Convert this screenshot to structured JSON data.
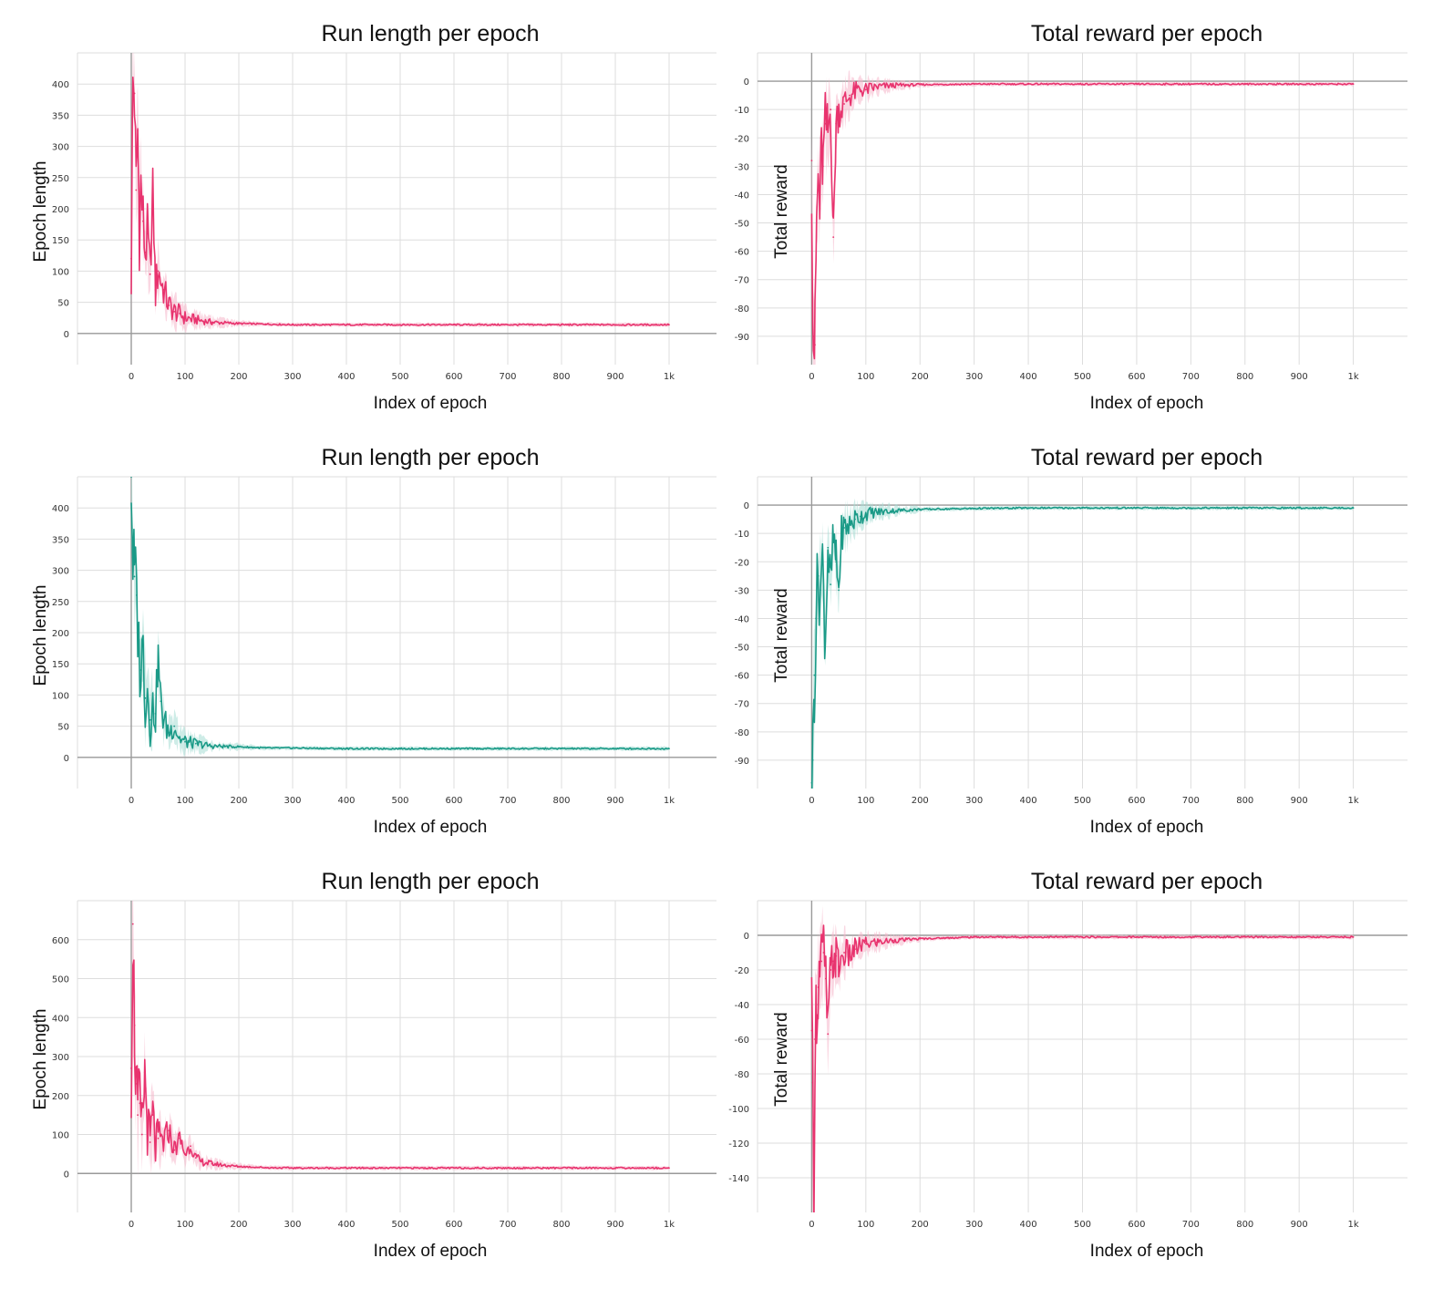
{
  "colors": {
    "pink": "#e8336e",
    "pink_band": "#f6b6cb",
    "teal": "#1a9a87",
    "teal_band": "#a6dcd3",
    "grid": "#dddddd",
    "axis": "#9a9a9a"
  },
  "chart_data": [
    {
      "id": "r1-length",
      "type": "line",
      "color": "pink",
      "title": "Run length per epoch",
      "xlabel": "Index of epoch",
      "ylabel": "Epoch length",
      "xlim": [
        -100,
        1100
      ],
      "ylim": [
        -50,
        450
      ],
      "x_ticks": [
        0,
        100,
        200,
        300,
        400,
        500,
        600,
        700,
        800,
        900,
        1000
      ],
      "x_tick_labels": [
        "0",
        "100",
        "200",
        "300",
        "400",
        "500",
        "600",
        "700",
        "800",
        "900",
        "1k"
      ],
      "y_ticks": [
        0,
        50,
        100,
        150,
        200,
        250,
        300,
        350,
        400
      ],
      "y_tick_labels": [
        "0",
        "50",
        "100",
        "150",
        "200",
        "250",
        "300",
        "350",
        "400"
      ],
      "grid": true,
      "series": [
        {
          "x": [
            0,
            3,
            6,
            9,
            12,
            15,
            18,
            22,
            26,
            30,
            35,
            40,
            45,
            50,
            60,
            70,
            80,
            90,
            100,
            120,
            150,
            200,
            250,
            300,
            400,
            500,
            600,
            700,
            800,
            900,
            1000
          ],
          "values": [
            120,
            400,
            385,
            230,
            325,
            165,
            240,
            180,
            130,
            160,
            95,
            230,
            70,
            100,
            70,
            45,
            35,
            32,
            25,
            22,
            18,
            16,
            15,
            14,
            14,
            14,
            14,
            14,
            14,
            14,
            14
          ]
        }
      ]
    },
    {
      "id": "r1-reward",
      "type": "line",
      "color": "pink",
      "title": "Total reward per epoch",
      "xlabel": "Index of epoch",
      "ylabel": "Total reward",
      "xlim": [
        -100,
        1100
      ],
      "ylim": [
        -100,
        10
      ],
      "x_ticks": [
        0,
        100,
        200,
        300,
        400,
        500,
        600,
        700,
        800,
        900,
        1000
      ],
      "x_tick_labels": [
        "0",
        "100",
        "200",
        "300",
        "400",
        "500",
        "600",
        "700",
        "800",
        "900",
        "1k"
      ],
      "y_ticks": [
        0,
        -10,
        -20,
        -30,
        -40,
        -50,
        -60,
        -70,
        -80,
        -90
      ],
      "y_tick_labels": [
        "0",
        "-10",
        "-20",
        "-30",
        "-40",
        "-50",
        "-60",
        "-70",
        "-80",
        "-90"
      ],
      "grid": true,
      "series": [
        {
          "x": [
            0,
            3,
            6,
            9,
            12,
            15,
            18,
            21,
            25,
            30,
            35,
            40,
            45,
            50,
            60,
            70,
            80,
            90,
            100,
            120,
            150,
            200,
            300,
            400,
            500,
            600,
            700,
            800,
            900,
            1000
          ],
          "values": [
            -28,
            -90,
            -93,
            -50,
            -35,
            -45,
            -25,
            -30,
            -15,
            -18,
            -10,
            -55,
            -15,
            -10,
            -8,
            -5,
            -4,
            -3,
            -3,
            -2,
            -1.5,
            -1.2,
            -1,
            -1,
            -1,
            -1,
            -1,
            -1,
            -1,
            -1
          ]
        }
      ]
    },
    {
      "id": "r2-length",
      "type": "line",
      "color": "teal",
      "title": "Run length per epoch",
      "xlabel": "Index of epoch",
      "ylabel": "Epoch length",
      "xlim": [
        -100,
        1100
      ],
      "ylim": [
        -50,
        450
      ],
      "x_ticks": [
        0,
        100,
        200,
        300,
        400,
        500,
        600,
        700,
        800,
        900,
        1000
      ],
      "x_tick_labels": [
        "0",
        "100",
        "200",
        "300",
        "400",
        "500",
        "600",
        "700",
        "800",
        "900",
        "1k"
      ],
      "y_ticks": [
        0,
        50,
        100,
        150,
        200,
        250,
        300,
        350,
        400
      ],
      "y_tick_labels": [
        "0",
        "50",
        "100",
        "150",
        "200",
        "250",
        "300",
        "350",
        "400"
      ],
      "grid": true,
      "series": [
        {
          "x": [
            0,
            3,
            6,
            10,
            14,
            18,
            22,
            26,
            30,
            35,
            40,
            45,
            50,
            55,
            60,
            70,
            80,
            90,
            100,
            120,
            150,
            200,
            250,
            300,
            400,
            500,
            600,
            700,
            800,
            900,
            1000
          ],
          "values": [
            450,
            320,
            290,
            260,
            170,
            140,
            180,
            95,
            110,
            60,
            80,
            70,
            160,
            90,
            60,
            40,
            50,
            30,
            25,
            22,
            18,
            17,
            15,
            15,
            14,
            14,
            14,
            14,
            14,
            14,
            14
          ]
        }
      ]
    },
    {
      "id": "r2-reward",
      "type": "line",
      "color": "teal",
      "title": "Total reward per epoch",
      "xlabel": "Index of epoch",
      "ylabel": "Total reward",
      "xlim": [
        -100,
        1100
      ],
      "ylim": [
        -100,
        10
      ],
      "x_ticks": [
        0,
        100,
        200,
        300,
        400,
        500,
        600,
        700,
        800,
        900,
        1000
      ],
      "x_tick_labels": [
        "0",
        "100",
        "200",
        "300",
        "400",
        "500",
        "600",
        "700",
        "800",
        "900",
        "1k"
      ],
      "y_ticks": [
        0,
        -10,
        -20,
        -30,
        -40,
        -50,
        -60,
        -70,
        -80,
        -90
      ],
      "y_tick_labels": [
        "0",
        "-10",
        "-20",
        "-30",
        "-40",
        "-50",
        "-60",
        "-70",
        "-80",
        "-90"
      ],
      "grid": true,
      "series": [
        {
          "x": [
            0,
            2,
            5,
            8,
            12,
            16,
            20,
            25,
            30,
            35,
            40,
            45,
            50,
            55,
            60,
            70,
            80,
            90,
            100,
            120,
            150,
            200,
            300,
            400,
            500,
            600,
            700,
            800,
            900,
            1000
          ],
          "values": [
            -98,
            -90,
            -60,
            -40,
            -25,
            -30,
            -20,
            -48,
            -15,
            -28,
            -12,
            -20,
            -30,
            -10,
            -8,
            -7,
            -5,
            -4,
            -3,
            -2.5,
            -2,
            -1.5,
            -1.2,
            -1,
            -1,
            -1,
            -1,
            -1,
            -1,
            -1
          ]
        }
      ]
    },
    {
      "id": "r3-length",
      "type": "line",
      "color": "pink",
      "title": "Run length per epoch",
      "xlabel": "Index of epoch",
      "ylabel": "Epoch length",
      "xlim": [
        -100,
        1100
      ],
      "ylim": [
        -100,
        700
      ],
      "x_ticks": [
        0,
        100,
        200,
        300,
        400,
        500,
        600,
        700,
        800,
        900,
        1000
      ],
      "x_tick_labels": [
        "0",
        "100",
        "200",
        "300",
        "400",
        "500",
        "600",
        "700",
        "800",
        "900",
        "1k"
      ],
      "y_ticks": [
        0,
        100,
        200,
        300,
        400,
        500,
        600
      ],
      "y_tick_labels": [
        "0",
        "100",
        "200",
        "300",
        "400",
        "500",
        "600"
      ],
      "grid": true,
      "series": [
        {
          "x": [
            0,
            3,
            6,
            9,
            12,
            16,
            20,
            25,
            30,
            35,
            40,
            45,
            50,
            60,
            70,
            80,
            90,
            100,
            110,
            120,
            130,
            150,
            180,
            200,
            250,
            300,
            400,
            500,
            600,
            700,
            800,
            900,
            1000
          ],
          "values": [
            270,
            640,
            380,
            230,
            150,
            180,
            100,
            260,
            120,
            80,
            150,
            70,
            90,
            80,
            110,
            60,
            90,
            50,
            70,
            40,
            30,
            25,
            20,
            18,
            15,
            14,
            14,
            14,
            14,
            14,
            14,
            14,
            14
          ]
        }
      ]
    },
    {
      "id": "r3-reward",
      "type": "line",
      "color": "pink",
      "title": "Total reward per epoch",
      "xlabel": "Index of epoch",
      "ylabel": "Total reward",
      "xlim": [
        -100,
        1100
      ],
      "ylim": [
        -160,
        20
      ],
      "x_ticks": [
        0,
        100,
        200,
        300,
        400,
        500,
        600,
        700,
        800,
        900,
        1000
      ],
      "x_tick_labels": [
        "0",
        "100",
        "200",
        "300",
        "400",
        "500",
        "600",
        "700",
        "800",
        "900",
        "1k"
      ],
      "y_ticks": [
        0,
        -20,
        -40,
        -60,
        -80,
        -100,
        -120,
        -140
      ],
      "y_tick_labels": [
        "0",
        "-20",
        "-40",
        "-60",
        "-80",
        "-100",
        "-120",
        "-140"
      ],
      "grid": true,
      "series": [
        {
          "x": [
            0,
            2,
            4,
            6,
            9,
            12,
            15,
            18,
            22,
            26,
            30,
            35,
            40,
            45,
            50,
            60,
            70,
            80,
            90,
            100,
            120,
            150,
            200,
            250,
            300,
            400,
            500,
            600,
            700,
            800,
            900,
            1000
          ],
          "values": [
            -55,
            -85,
            -145,
            -60,
            -40,
            -30,
            -20,
            -15,
            -10,
            -25,
            -57,
            -20,
            -15,
            -12,
            -18,
            -10,
            -12,
            -8,
            -6,
            -5,
            -4,
            -3,
            -2,
            -1.5,
            -1,
            -1,
            -1,
            -1,
            -1,
            -1,
            -1,
            -1
          ]
        }
      ]
    }
  ]
}
